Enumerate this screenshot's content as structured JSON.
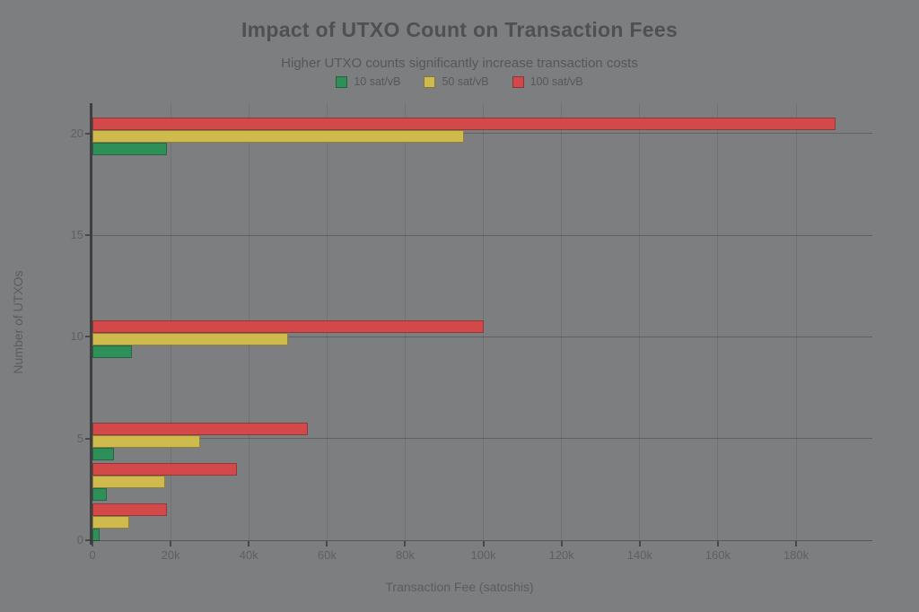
{
  "colors": {
    "background": "#7c7e7f",
    "title_text": "#4d5153",
    "subtitle_text": "#54585a",
    "tick_text": "#5d6163",
    "axis_label_text": "#595d5f",
    "axis_spine": "#3d3f40",
    "series_green": "#2e8f58",
    "series_yellow": "#cfba4e",
    "series_red": "#d34849"
  },
  "chart_data": {
    "type": "bar",
    "orientation": "horizontal",
    "title": "Impact of UTXO Count on Transaction Fees",
    "subtitle": "Higher UTXO counts significantly increase transaction costs",
    "xlabel": "Transaction Fee (satoshis)",
    "ylabel": "Number of UTXOs",
    "categories": [
      1,
      3,
      5,
      10,
      20
    ],
    "series": [
      {
        "name": "10 sat/vB",
        "color": "#2e8f58",
        "values": [
          1900,
          3700,
          5500,
          10000,
          19000
        ]
      },
      {
        "name": "50 sat/vB",
        "color": "#cfba4e",
        "values": [
          9500,
          18500,
          27500,
          50000,
          95000
        ]
      },
      {
        "name": "100 sat/vB",
        "color": "#d34849",
        "values": [
          19000,
          37000,
          55000,
          100000,
          190000
        ]
      }
    ],
    "xlim": [
      0,
      199500
    ],
    "ylim": [
      0,
      21.5
    ],
    "x_ticks": [
      0,
      20000,
      40000,
      60000,
      80000,
      100000,
      120000,
      140000,
      160000,
      180000
    ],
    "x_tick_labels": [
      "0",
      "20k",
      "40k",
      "60k",
      "80k",
      "100k",
      "120k",
      "140k",
      "160k",
      "180k"
    ],
    "y_ticks": [
      0,
      5,
      10,
      15,
      20
    ],
    "y_tick_labels": [
      "0",
      "5",
      "10",
      "15",
      "20"
    ],
    "grid": true,
    "legend_position": "top-center"
  }
}
